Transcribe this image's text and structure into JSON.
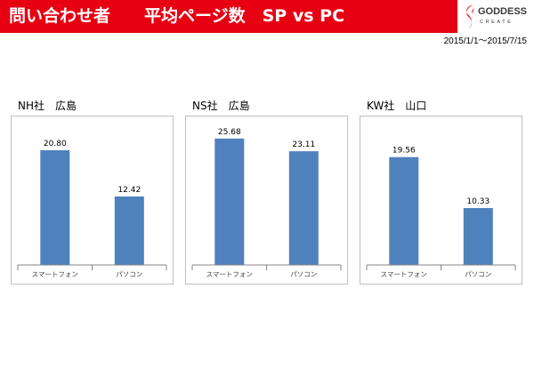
{
  "header": {
    "title": "問い合わせ者　　平均ページ数　SP vs PC",
    "date_range": "2015/1/1～2015/7/15",
    "background_color": "#E60012"
  },
  "logo": {
    "name": "GODDESS",
    "sub": "CREATE",
    "mark_icon": "goddess-swirl-icon",
    "mark_color": "#E60012"
  },
  "chart_data": [
    {
      "type": "bar",
      "title": "NH社　広島",
      "categories": [
        "スマートフォン",
        "パソコン"
      ],
      "values": [
        20.8,
        12.42
      ],
      "data_labels": [
        "20.80",
        "12.42"
      ],
      "ylim": [
        0,
        25
      ],
      "grid": false,
      "legend": "none",
      "bar_color": "#4F81BD"
    },
    {
      "type": "bar",
      "title": "NS社　広島",
      "categories": [
        "スマートフォン",
        "パソコン"
      ],
      "values": [
        25.68,
        23.11
      ],
      "data_labels": [
        "25.68",
        "23.11"
      ],
      "ylim": [
        0,
        28
      ],
      "grid": false,
      "legend": "none",
      "bar_color": "#4F81BD"
    },
    {
      "type": "bar",
      "title": "KW社　山口",
      "categories": [
        "スマートフォン",
        "パソコン"
      ],
      "values": [
        19.56,
        10.33
      ],
      "data_labels": [
        "19.56",
        "10.33"
      ],
      "ylim": [
        0,
        25
      ],
      "grid": false,
      "legend": "none",
      "bar_color": "#4F81BD"
    }
  ]
}
